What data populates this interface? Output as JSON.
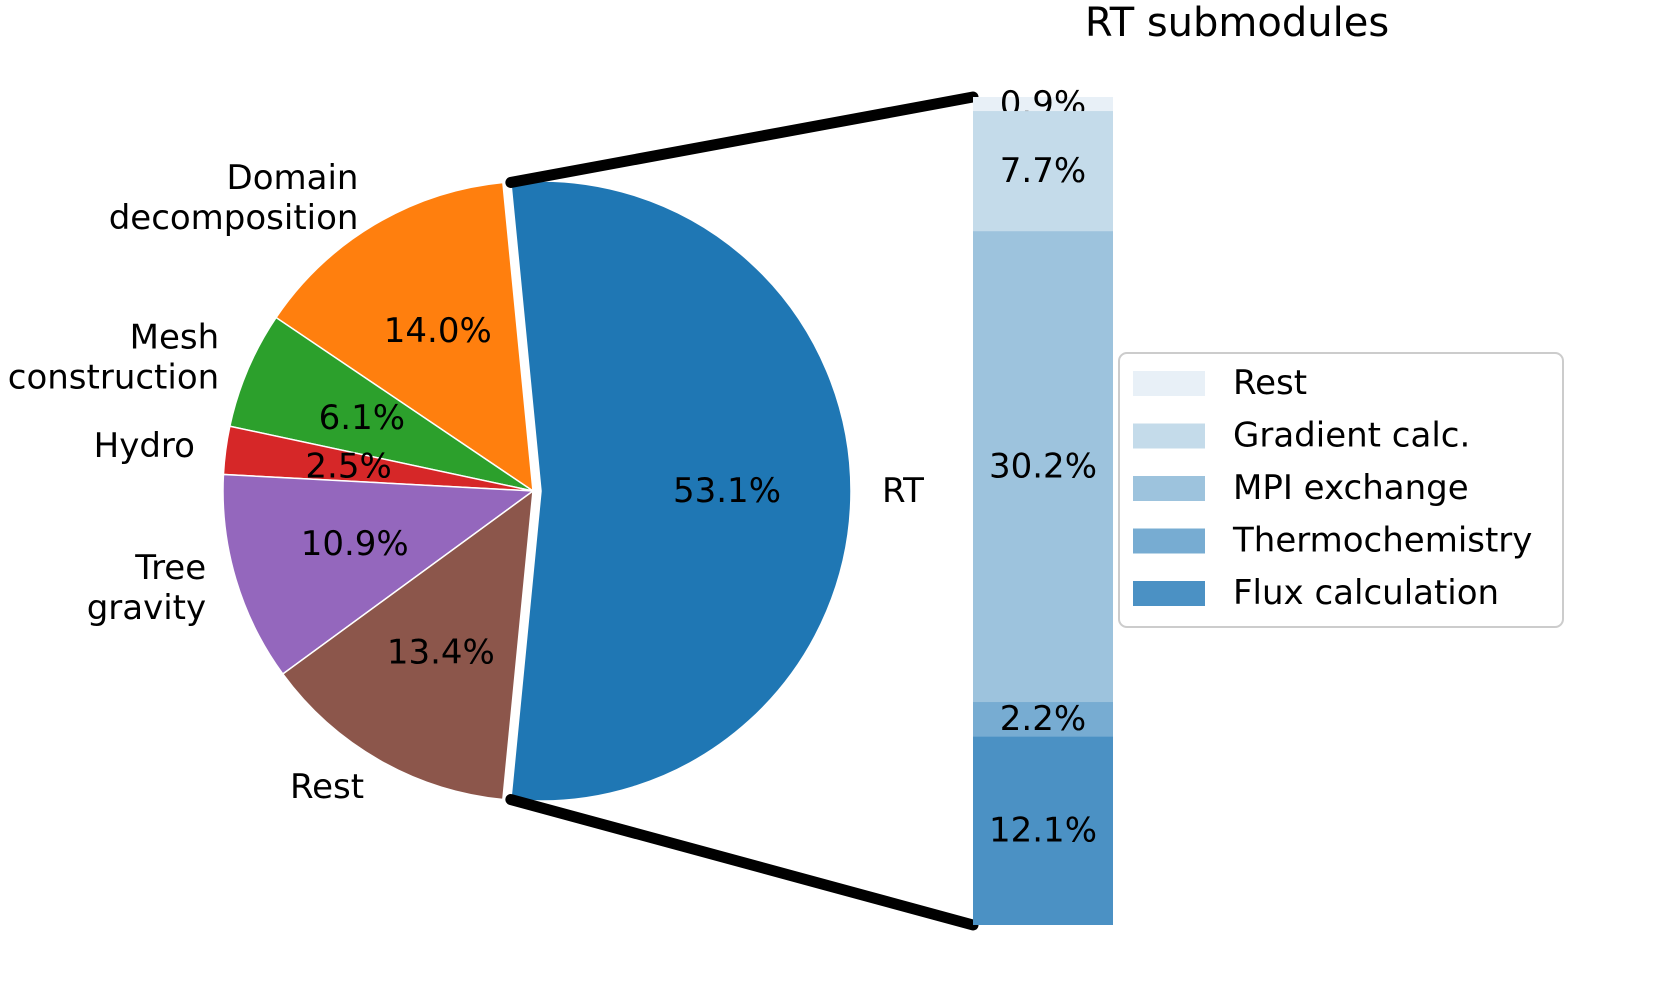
{
  "chart_data": [
    {
      "type": "pie",
      "labels": [
        "RT",
        "Domain\ndecomposition",
        "Mesh\nconstruction",
        "Hydro",
        "Tree\ngravity",
        "Rest"
      ],
      "values": [
        53.1,
        14.0,
        6.1,
        2.5,
        10.9,
        13.4
      ],
      "value_labels": [
        "53.1%",
        "14.0%",
        "6.1%",
        "2.5%",
        "10.9%",
        "13.4%"
      ],
      "colors": [
        "#1f77b4",
        "#ff7f0e",
        "#2ca02c",
        "#d62728",
        "#9467bd",
        "#8c564b"
      ],
      "exploded": "RT"
    },
    {
      "type": "bar",
      "stacked": true,
      "title": "RT submodules",
      "categories": [
        "Rest",
        "Gradient calc.",
        "MPI exchange",
        "Thermochemistry",
        "Flux calculation"
      ],
      "values": [
        0.9,
        7.7,
        30.2,
        2.2,
        12.1
      ],
      "value_labels": [
        "0.9%",
        "7.7%",
        "30.2%",
        "2.2%",
        "12.1%"
      ],
      "colors": [
        "#e8f0f7",
        "#c4dbea",
        "#9dc3dd",
        "#77acd2",
        "#4b91c4"
      ],
      "legend": [
        "Rest",
        "Gradient calc.",
        "MPI exchange",
        "Thermochemistry",
        "Flux calculation"
      ],
      "legend_position": "right"
    }
  ]
}
